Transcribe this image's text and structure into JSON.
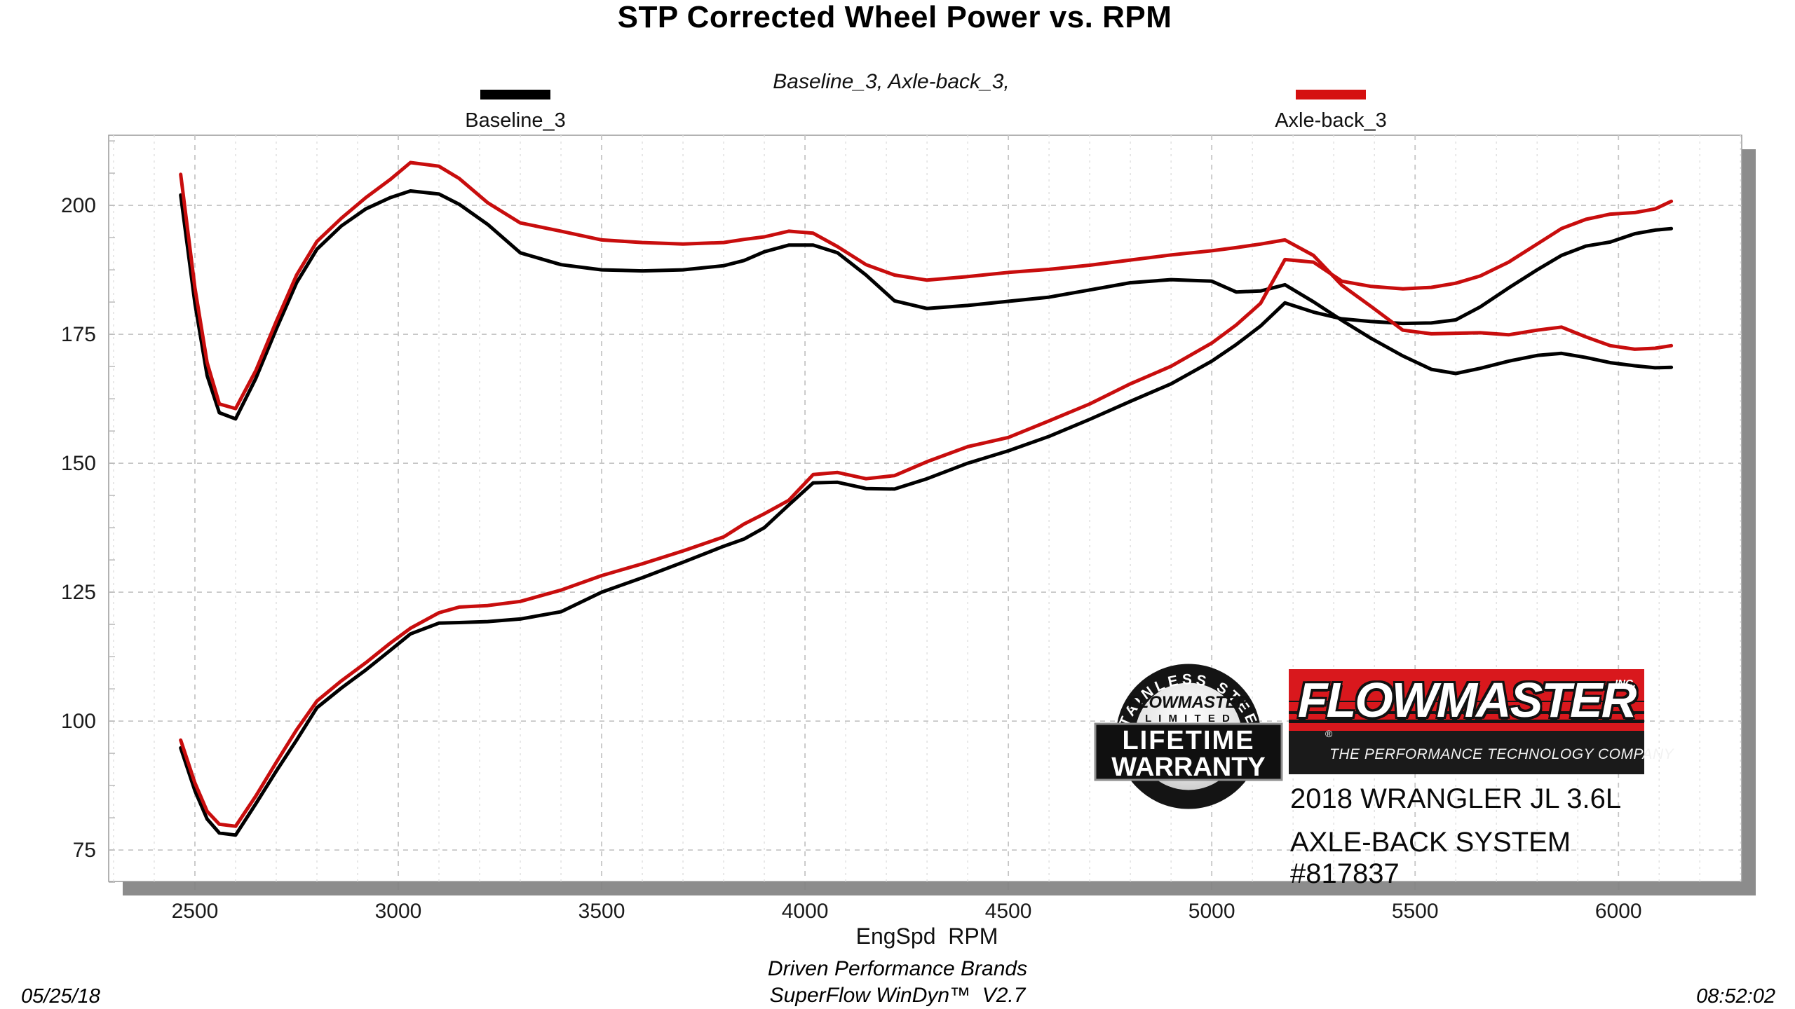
{
  "footer": {
    "brand_line": "Driven Performance Brands",
    "software_line": "SuperFlow WinDyn™  V2.7",
    "date": "05/25/18",
    "time": "08:52:02"
  },
  "branding": {
    "logo_text": "FLOWMASTER",
    "logo_inc": "INC.",
    "logo_reg": "®",
    "logo_tagline": "THE PERFORMANCE TECHNOLOGY COMPANY",
    "vehicle_line1": "2018 WRANGLER JL 3.6L",
    "vehicle_line2": "AXLE-BACK SYSTEM #817837",
    "badge_arc": "STAINLESS STEEL",
    "badge_brand": "FLOWMASTER",
    "badge_limited": "L I M I T E D",
    "badge_line1": "LIFETIME",
    "badge_line2": "WARRANTY"
  },
  "chart_data": {
    "type": "line",
    "title": "STP Corrected Wheel Power vs. RPM",
    "subtitle": "Baseline_3, Axle-back_3,",
    "xlabel": "EngSpd  RPM",
    "ylabel": "",
    "xlim": [
      2288,
      6303
    ],
    "ylim": [
      68.9,
      213.6
    ],
    "x_ticks": [
      2500,
      3000,
      3500,
      4000,
      4500,
      5000,
      5500,
      6000
    ],
    "y_ticks": [
      75,
      100,
      125,
      150,
      175,
      200
    ],
    "x_minor_step": 100,
    "y_minor_step": 6.25,
    "grid": "dashed",
    "legend_position": "top",
    "legend": [
      {
        "label": "Baseline_3",
        "color": "#000000"
      },
      {
        "label": "Axle-back_3",
        "color": "#d51010"
      }
    ],
    "x": [
      2465,
      2500,
      2530,
      2560,
      2600,
      2650,
      2700,
      2750,
      2800,
      2860,
      2920,
      2980,
      3030,
      3100,
      3150,
      3220,
      3300,
      3400,
      3500,
      3600,
      3700,
      3800,
      3850,
      3900,
      3960,
      4020,
      4080,
      4150,
      4220,
      4300,
      4400,
      4500,
      4600,
      4700,
      4800,
      4900,
      5000,
      5060,
      5120,
      5180,
      5250,
      5320,
      5390,
      5470,
      5540,
      5600,
      5660,
      5730,
      5800,
      5860,
      5920,
      5980,
      6040,
      6090,
      6130
    ],
    "series": [
      {
        "name": "Baseline_3 torque",
        "run": "Baseline_3",
        "color": "#000000",
        "values": [
          202.0,
          181.0,
          167.0,
          159.8,
          158.6,
          166.5,
          176.0,
          185.0,
          191.5,
          196.0,
          199.3,
          201.5,
          202.8,
          202.2,
          200.2,
          196.3,
          190.8,
          188.5,
          187.5,
          187.3,
          187.5,
          188.3,
          189.3,
          191.0,
          192.3,
          192.3,
          190.8,
          186.5,
          181.5,
          180.0,
          180.6,
          181.4,
          182.2,
          183.6,
          185.0,
          185.6,
          185.3,
          183.2,
          183.4,
          184.6,
          181.3,
          177.7,
          174.3,
          170.8,
          168.2,
          167.4,
          168.4,
          169.8,
          170.9,
          171.3,
          170.5,
          169.5,
          168.9,
          168.5,
          168.6
        ]
      },
      {
        "name": "Axle-back_3 torque",
        "run": "Axle-back_3",
        "color": "#c80d0d",
        "values": [
          206.0,
          184.0,
          169.5,
          161.5,
          160.6,
          168.0,
          177.5,
          186.5,
          193.0,
          197.5,
          201.5,
          205.0,
          208.3,
          207.6,
          205.2,
          200.5,
          196.6,
          195.0,
          193.3,
          192.8,
          192.5,
          192.8,
          193.4,
          193.9,
          195.0,
          194.6,
          192.0,
          188.5,
          186.5,
          185.5,
          186.2,
          187.0,
          187.6,
          188.4,
          189.4,
          190.4,
          191.2,
          191.8,
          192.5,
          193.3,
          190.3,
          184.5,
          180.5,
          175.8,
          175.1,
          175.2,
          175.3,
          174.9,
          175.8,
          176.4,
          174.5,
          172.8,
          172.1,
          172.3,
          172.8
        ]
      },
      {
        "name": "Baseline_3 power",
        "run": "Baseline_3",
        "color": "#000000",
        "values": [
          94.8,
          86.5,
          81.0,
          78.3,
          77.9,
          84.0,
          90.3,
          96.3,
          102.6,
          106.4,
          109.9,
          113.7,
          116.9,
          119.0,
          119.1,
          119.3,
          119.8,
          121.2,
          125.0,
          127.8,
          130.8,
          133.9,
          135.3,
          137.5,
          141.9,
          146.2,
          146.3,
          145.1,
          145.0,
          147.0,
          150.0,
          152.4,
          155.2,
          158.5,
          162.0,
          165.4,
          169.8,
          173.0,
          176.6,
          181.1,
          179.3,
          178.0,
          177.5,
          177.1,
          177.2,
          177.8,
          180.3,
          184.0,
          187.5,
          190.3,
          192.1,
          192.9,
          194.5,
          195.2,
          195.5
        ]
      },
      {
        "name": "Axle-back_3 power",
        "run": "Axle-back_3",
        "color": "#c80d0d",
        "values": [
          96.3,
          88.0,
          82.5,
          80.0,
          79.6,
          85.5,
          92.0,
          98.3,
          103.9,
          107.8,
          111.3,
          115.1,
          118.0,
          121.0,
          122.1,
          122.4,
          123.2,
          125.4,
          128.2,
          130.5,
          133.0,
          135.7,
          138.2,
          140.2,
          142.8,
          147.8,
          148.2,
          147.0,
          147.6,
          150.3,
          153.2,
          155.0,
          158.2,
          161.5,
          165.4,
          168.8,
          173.3,
          176.8,
          181.0,
          189.5,
          189.0,
          185.3,
          184.3,
          183.8,
          184.1,
          184.9,
          186.3,
          189.0,
          192.5,
          195.5,
          197.3,
          198.3,
          198.6,
          199.3,
          200.8
        ]
      }
    ]
  }
}
